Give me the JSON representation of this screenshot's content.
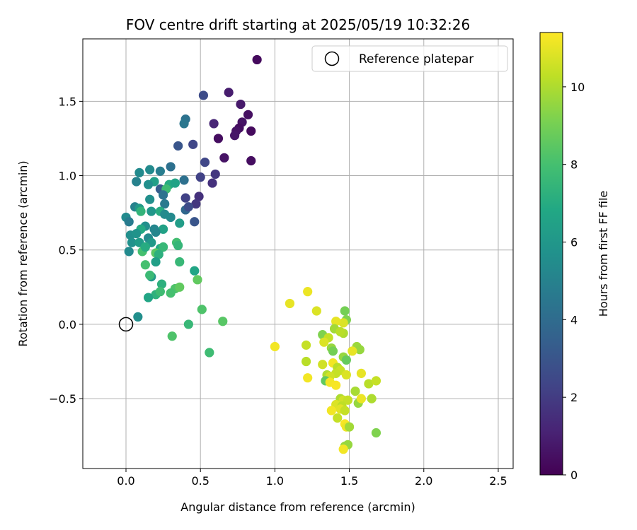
{
  "chart_data": {
    "type": "scatter",
    "title": "FOV centre drift starting at 2025/05/19 10:32:26",
    "xlabel": "Angular distance from reference (arcmin)",
    "ylabel": "Rotation from reference (arcmin)",
    "xlim": [
      -0.29,
      2.6
    ],
    "ylim": [
      -0.97,
      1.92
    ],
    "xticks": [
      0.0,
      0.5,
      1.0,
      1.5,
      2.0,
      2.5
    ],
    "xtick_labels": [
      "0.0",
      "0.5",
      "1.0",
      "1.5",
      "2.0",
      "2.5"
    ],
    "yticks": [
      -0.5,
      0.0,
      0.5,
      1.0,
      1.5
    ],
    "ytick_labels": [
      "−0.5",
      "0.0",
      "0.5",
      "1.0",
      "1.5"
    ],
    "grid": true,
    "legend": {
      "position": "upper-right",
      "label": "Reference platepar"
    },
    "reference_point": {
      "x": 0.0,
      "y": 0.0
    },
    "colorbar": {
      "label": "Hours from first FF file",
      "colormap": "viridis",
      "range": [
        0,
        11.4
      ],
      "ticks": [
        0,
        2,
        4,
        6,
        8,
        10
      ],
      "tick_labels": [
        "0",
        "2",
        "4",
        "6",
        "8",
        "10"
      ]
    },
    "points": [
      {
        "x": 0.88,
        "y": 1.78,
        "t": 0.3
      },
      {
        "x": 0.69,
        "y": 1.56,
        "t": 0.9
      },
      {
        "x": 0.77,
        "y": 1.48,
        "t": 0.8
      },
      {
        "x": 0.82,
        "y": 1.41,
        "t": 0.5
      },
      {
        "x": 0.78,
        "y": 1.36,
        "t": 0.6
      },
      {
        "x": 0.76,
        "y": 1.32,
        "t": 0.4
      },
      {
        "x": 0.74,
        "y": 1.3,
        "t": 0.6
      },
      {
        "x": 0.73,
        "y": 1.27,
        "t": 0.7
      },
      {
        "x": 0.84,
        "y": 1.3,
        "t": 0.3
      },
      {
        "x": 0.59,
        "y": 1.35,
        "t": 1.2
      },
      {
        "x": 0.62,
        "y": 1.25,
        "t": 0.4
      },
      {
        "x": 0.52,
        "y": 1.54,
        "t": 2.6
      },
      {
        "x": 0.66,
        "y": 1.12,
        "t": 0.6
      },
      {
        "x": 0.84,
        "y": 1.1,
        "t": 0.4
      },
      {
        "x": 0.6,
        "y": 1.01,
        "t": 1.8
      },
      {
        "x": 0.5,
        "y": 0.99,
        "t": 2.2
      },
      {
        "x": 0.58,
        "y": 0.95,
        "t": 1.6
      },
      {
        "x": 0.53,
        "y": 1.09,
        "t": 2.4
      },
      {
        "x": 0.45,
        "y": 1.21,
        "t": 2.4
      },
      {
        "x": 0.35,
        "y": 1.2,
        "t": 3.0
      },
      {
        "x": 0.4,
        "y": 1.38,
        "t": 4.3
      },
      {
        "x": 0.39,
        "y": 1.35,
        "t": 4.5
      },
      {
        "x": 0.3,
        "y": 1.06,
        "t": 4.2
      },
      {
        "x": 0.23,
        "y": 1.03,
        "t": 4.8
      },
      {
        "x": 0.16,
        "y": 1.04,
        "t": 5.4
      },
      {
        "x": 0.09,
        "y": 1.02,
        "t": 5.4
      },
      {
        "x": 0.07,
        "y": 0.96,
        "t": 5.0
      },
      {
        "x": 0.19,
        "y": 0.96,
        "t": 6.4
      },
      {
        "x": 0.15,
        "y": 0.94,
        "t": 5.6
      },
      {
        "x": 0.29,
        "y": 0.94,
        "t": 7.0
      },
      {
        "x": 0.33,
        "y": 0.95,
        "t": 6.6
      },
      {
        "x": 0.39,
        "y": 0.97,
        "t": 4.2
      },
      {
        "x": 0.23,
        "y": 0.91,
        "t": 3.3
      },
      {
        "x": 0.27,
        "y": 0.91,
        "t": 7.8
      },
      {
        "x": 0.25,
        "y": 0.87,
        "t": 4.3
      },
      {
        "x": 0.4,
        "y": 0.85,
        "t": 2.2
      },
      {
        "x": 0.49,
        "y": 0.86,
        "t": 1.6
      },
      {
        "x": 0.47,
        "y": 0.81,
        "t": 1.8
      },
      {
        "x": 0.26,
        "y": 0.81,
        "t": 4.6
      },
      {
        "x": 0.16,
        "y": 0.84,
        "t": 5.6
      },
      {
        "x": 0.4,
        "y": 0.77,
        "t": 3.8
      },
      {
        "x": 0.42,
        "y": 0.79,
        "t": 2.6
      },
      {
        "x": 0.06,
        "y": 0.79,
        "t": 5.0
      },
      {
        "x": 0.09,
        "y": 0.78,
        "t": 6.1
      },
      {
        "x": 0.1,
        "y": 0.76,
        "t": 7.4
      },
      {
        "x": 0.17,
        "y": 0.76,
        "t": 6.0
      },
      {
        "x": 0.23,
        "y": 0.76,
        "t": 7.0
      },
      {
        "x": 0.26,
        "y": 0.74,
        "t": 5.4
      },
      {
        "x": 0.3,
        "y": 0.72,
        "t": 5.4
      },
      {
        "x": 0.0,
        "y": 0.72,
        "t": 5.4
      },
      {
        "x": 0.02,
        "y": 0.69,
        "t": 4.7
      },
      {
        "x": 0.46,
        "y": 0.69,
        "t": 3.0
      },
      {
        "x": 0.36,
        "y": 0.68,
        "t": 6.3
      },
      {
        "x": 0.13,
        "y": 0.66,
        "t": 5.6
      },
      {
        "x": 0.1,
        "y": 0.64,
        "t": 6.9
      },
      {
        "x": 0.19,
        "y": 0.64,
        "t": 5.2
      },
      {
        "x": 0.25,
        "y": 0.64,
        "t": 6.5
      },
      {
        "x": 0.2,
        "y": 0.62,
        "t": 5.2
      },
      {
        "x": 0.03,
        "y": 0.6,
        "t": 5.6
      },
      {
        "x": 0.07,
        "y": 0.61,
        "t": 5.8
      },
      {
        "x": 0.15,
        "y": 0.58,
        "t": 5.4
      },
      {
        "x": 0.04,
        "y": 0.55,
        "t": 5.7
      },
      {
        "x": 0.09,
        "y": 0.55,
        "t": 6.2
      },
      {
        "x": 0.17,
        "y": 0.55,
        "t": 6.1
      },
      {
        "x": 0.23,
        "y": 0.51,
        "t": 6.8
      },
      {
        "x": 0.25,
        "y": 0.52,
        "t": 7.6
      },
      {
        "x": 0.34,
        "y": 0.55,
        "t": 7.9
      },
      {
        "x": 0.35,
        "y": 0.53,
        "t": 7.5
      },
      {
        "x": 0.02,
        "y": 0.49,
        "t": 5.4
      },
      {
        "x": 0.11,
        "y": 0.49,
        "t": 8.0
      },
      {
        "x": 0.13,
        "y": 0.52,
        "t": 7.0
      },
      {
        "x": 0.2,
        "y": 0.48,
        "t": 8.4
      },
      {
        "x": 0.22,
        "y": 0.47,
        "t": 7.2
      },
      {
        "x": 0.2,
        "y": 0.42,
        "t": 6.4
      },
      {
        "x": 0.36,
        "y": 0.42,
        "t": 7.6
      },
      {
        "x": 0.13,
        "y": 0.4,
        "t": 8.0
      },
      {
        "x": 0.46,
        "y": 0.36,
        "t": 6.7
      },
      {
        "x": 0.17,
        "y": 0.32,
        "t": 6.1
      },
      {
        "x": 0.16,
        "y": 0.33,
        "t": 7.7
      },
      {
        "x": 0.48,
        "y": 0.3,
        "t": 8.6
      },
      {
        "x": 0.24,
        "y": 0.27,
        "t": 7.2
      },
      {
        "x": 0.33,
        "y": 0.24,
        "t": 8.2
      },
      {
        "x": 0.36,
        "y": 0.25,
        "t": 8.6
      },
      {
        "x": 0.3,
        "y": 0.21,
        "t": 8.0
      },
      {
        "x": 0.2,
        "y": 0.2,
        "t": 7.3
      },
      {
        "x": 0.23,
        "y": 0.22,
        "t": 7.8
      },
      {
        "x": 0.15,
        "y": 0.18,
        "t": 6.7
      },
      {
        "x": 0.08,
        "y": 0.05,
        "t": 5.6
      },
      {
        "x": 0.51,
        "y": 0.1,
        "t": 8.2
      },
      {
        "x": 0.42,
        "y": 0.0,
        "t": 7.6
      },
      {
        "x": 0.65,
        "y": 0.02,
        "t": 8.4
      },
      {
        "x": 0.31,
        "y": -0.08,
        "t": 8.2
      },
      {
        "x": 0.56,
        "y": -0.19,
        "t": 7.8
      },
      {
        "x": 1.22,
        "y": 0.22,
        "t": 11.1
      },
      {
        "x": 1.1,
        "y": 0.14,
        "t": 11.0
      },
      {
        "x": 1.28,
        "y": 0.09,
        "t": 10.8
      },
      {
        "x": 1.47,
        "y": 0.09,
        "t": 9.0
      },
      {
        "x": 1.48,
        "y": 0.03,
        "t": 9.2
      },
      {
        "x": 1.46,
        "y": 0.01,
        "t": 10.8
      },
      {
        "x": 1.41,
        "y": 0.02,
        "t": 11.0
      },
      {
        "x": 1.4,
        "y": -0.03,
        "t": 9.8
      },
      {
        "x": 1.46,
        "y": -0.06,
        "t": 10.0
      },
      {
        "x": 1.32,
        "y": -0.07,
        "t": 9.2
      },
      {
        "x": 1.36,
        "y": -0.09,
        "t": 10.4
      },
      {
        "x": 1.44,
        "y": -0.05,
        "t": 10.2
      },
      {
        "x": 1.33,
        "y": -0.12,
        "t": 10.8
      },
      {
        "x": 1.0,
        "y": -0.15,
        "t": 11.2
      },
      {
        "x": 1.21,
        "y": -0.14,
        "t": 10.4
      },
      {
        "x": 1.38,
        "y": -0.16,
        "t": 9.6
      },
      {
        "x": 1.55,
        "y": -0.15,
        "t": 9.7
      },
      {
        "x": 1.57,
        "y": -0.17,
        "t": 9.6
      },
      {
        "x": 1.52,
        "y": -0.18,
        "t": 11.0
      },
      {
        "x": 1.39,
        "y": -0.18,
        "t": 9.0
      },
      {
        "x": 1.46,
        "y": -0.22,
        "t": 9.6
      },
      {
        "x": 1.21,
        "y": -0.25,
        "t": 10.2
      },
      {
        "x": 1.48,
        "y": -0.24,
        "t": 8.7
      },
      {
        "x": 1.32,
        "y": -0.27,
        "t": 10.6
      },
      {
        "x": 1.39,
        "y": -0.26,
        "t": 11.2
      },
      {
        "x": 1.42,
        "y": -0.29,
        "t": 10.2
      },
      {
        "x": 1.44,
        "y": -0.31,
        "t": 10.5
      },
      {
        "x": 1.41,
        "y": -0.33,
        "t": 10.4
      },
      {
        "x": 1.35,
        "y": -0.34,
        "t": 10.0
      },
      {
        "x": 1.37,
        "y": -0.35,
        "t": 10.6
      },
      {
        "x": 1.48,
        "y": -0.34,
        "t": 10.8
      },
      {
        "x": 1.58,
        "y": -0.33,
        "t": 11.0
      },
      {
        "x": 1.22,
        "y": -0.36,
        "t": 11.2
      },
      {
        "x": 1.34,
        "y": -0.38,
        "t": 8.6
      },
      {
        "x": 1.37,
        "y": -0.39,
        "t": 11.2
      },
      {
        "x": 1.41,
        "y": -0.41,
        "t": 11.3
      },
      {
        "x": 1.63,
        "y": -0.4,
        "t": 10.2
      },
      {
        "x": 1.68,
        "y": -0.38,
        "t": 10.4
      },
      {
        "x": 1.54,
        "y": -0.45,
        "t": 9.9
      },
      {
        "x": 1.44,
        "y": -0.5,
        "t": 10.0
      },
      {
        "x": 1.46,
        "y": -0.51,
        "t": 10.6
      },
      {
        "x": 1.56,
        "y": -0.53,
        "t": 9.6
      },
      {
        "x": 1.58,
        "y": -0.5,
        "t": 11.1
      },
      {
        "x": 1.65,
        "y": -0.5,
        "t": 10.0
      },
      {
        "x": 1.49,
        "y": -0.51,
        "t": 10.4
      },
      {
        "x": 1.41,
        "y": -0.54,
        "t": 10.8
      },
      {
        "x": 1.45,
        "y": -0.55,
        "t": 10.3
      },
      {
        "x": 1.44,
        "y": -0.57,
        "t": 10.9
      },
      {
        "x": 1.47,
        "y": -0.58,
        "t": 10.4
      },
      {
        "x": 1.38,
        "y": -0.58,
        "t": 11.2
      },
      {
        "x": 1.42,
        "y": -0.63,
        "t": 10.4
      },
      {
        "x": 1.47,
        "y": -0.67,
        "t": 11.3
      },
      {
        "x": 1.48,
        "y": -0.69,
        "t": 11.1
      },
      {
        "x": 1.5,
        "y": -0.69,
        "t": 9.8
      },
      {
        "x": 1.68,
        "y": -0.73,
        "t": 9.2
      },
      {
        "x": 1.47,
        "y": -0.82,
        "t": 9.6
      },
      {
        "x": 1.49,
        "y": -0.81,
        "t": 9.6
      },
      {
        "x": 1.46,
        "y": -0.84,
        "t": 11.2
      }
    ]
  }
}
